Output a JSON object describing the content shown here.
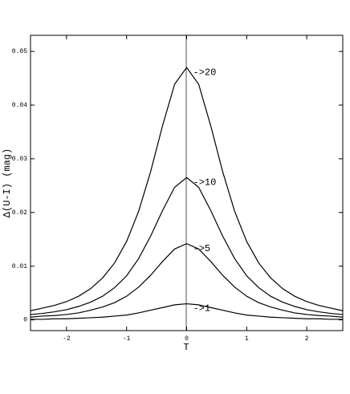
{
  "chart_data": {
    "type": "line",
    "xlabel": "T",
    "ylabel": "Δ(U-I) (mag)",
    "x": [
      -2.6,
      -2.4,
      -2.2,
      -2.0,
      -1.8,
      -1.6,
      -1.4,
      -1.2,
      -1.0,
      -0.8,
      -0.6,
      -0.4,
      -0.2,
      0,
      0.2,
      0.4,
      0.6,
      0.8,
      1.0,
      1.2,
      1.4,
      1.6,
      1.8,
      2.0,
      2.2,
      2.4,
      2.6
    ],
    "series": [
      {
        "name": "->20",
        "color": "#000000",
        "values": [
          0.0017,
          0.0022,
          0.0027,
          0.0034,
          0.0044,
          0.0058,
          0.0078,
          0.0106,
          0.0146,
          0.0202,
          0.0276,
          0.0362,
          0.0439,
          0.047,
          0.0439,
          0.0362,
          0.0276,
          0.0202,
          0.0146,
          0.0106,
          0.0078,
          0.0058,
          0.0044,
          0.0034,
          0.0027,
          0.0022,
          0.0017
        ]
      },
      {
        "name": "->10",
        "color": "#000000",
        "values": [
          0.001,
          0.0012,
          0.0015,
          0.0019,
          0.0025,
          0.0033,
          0.0044,
          0.006,
          0.0082,
          0.0114,
          0.0156,
          0.0204,
          0.0247,
          0.0265,
          0.0247,
          0.0204,
          0.0156,
          0.0114,
          0.0082,
          0.006,
          0.0044,
          0.0033,
          0.0025,
          0.0019,
          0.0015,
          0.0012,
          0.001
        ]
      },
      {
        "name": "->5",
        "color": "#000000",
        "values": [
          0.0005,
          0.0007,
          0.0008,
          0.001,
          0.0013,
          0.0018,
          0.0024,
          0.0032,
          0.0044,
          0.0061,
          0.0083,
          0.0109,
          0.0132,
          0.0142,
          0.0132,
          0.0109,
          0.0083,
          0.0061,
          0.0044,
          0.0032,
          0.0024,
          0.0018,
          0.0013,
          0.001,
          0.0008,
          0.0007,
          0.0005
        ]
      },
      {
        "name": "->1",
        "color": "#000000",
        "values": [
          0.0001,
          0.0001,
          0.0002,
          0.0002,
          0.0003,
          0.0004,
          0.0005,
          0.0007,
          0.0009,
          0.0013,
          0.0018,
          0.0023,
          0.0028,
          0.003,
          0.0028,
          0.0023,
          0.0018,
          0.0013,
          0.0009,
          0.0007,
          0.0005,
          0.0004,
          0.0003,
          0.0002,
          0.0002,
          0.0001,
          0.0001
        ]
      }
    ],
    "xlim": [
      -2.6,
      2.6
    ],
    "xticks": [
      -2,
      -1,
      0,
      1,
      2
    ],
    "ylim": [
      -0.002,
      0.053
    ],
    "yticks": [
      0,
      0.01,
      0.02,
      0.03,
      0.04,
      0.05
    ]
  }
}
